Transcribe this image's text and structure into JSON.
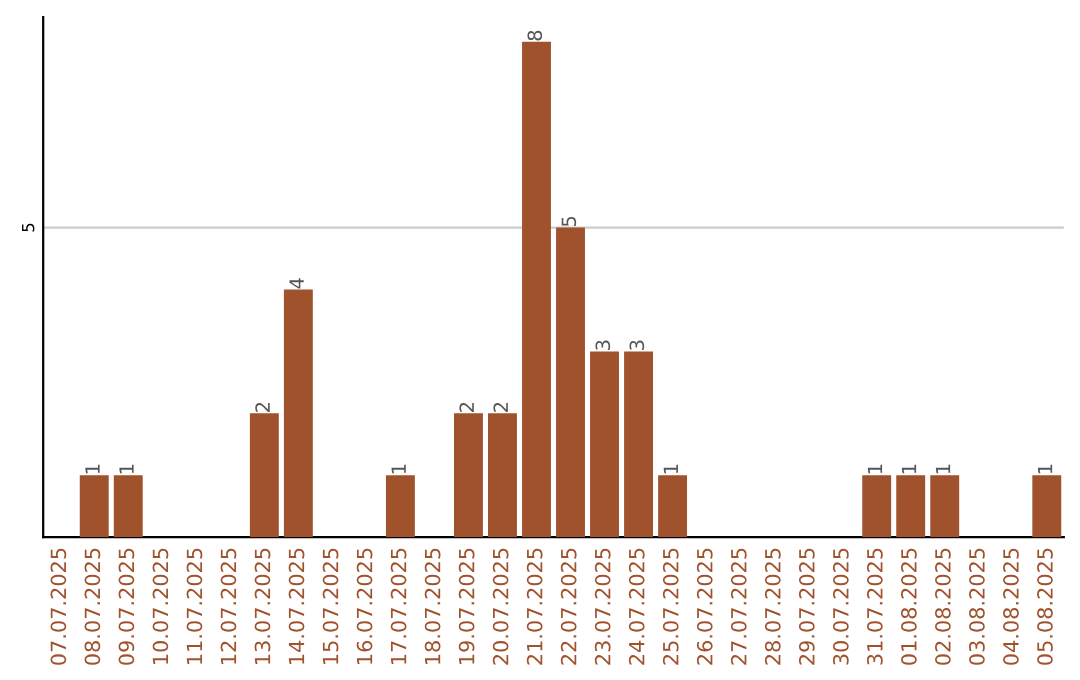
{
  "chart_data": {
    "type": "bar",
    "categories": [
      "07.07.2025",
      "08.07.2025",
      "09.07.2025",
      "10.07.2025",
      "11.07.2025",
      "12.07.2025",
      "13.07.2025",
      "14.07.2025",
      "15.07.2025",
      "16.07.2025",
      "17.07.2025",
      "18.07.2025",
      "19.07.2025",
      "20.07.2025",
      "21.07.2025",
      "22.07.2025",
      "23.07.2025",
      "24.07.2025",
      "25.07.2025",
      "26.07.2025",
      "27.07.2025",
      "28.07.2025",
      "29.07.2025",
      "30.07.2025",
      "31.07.2025",
      "01.08.2025",
      "02.08.2025",
      "03.08.2025",
      "04.08.2025",
      "05.08.2025"
    ],
    "values": [
      0,
      1,
      1,
      0,
      0,
      0,
      2,
      4,
      0,
      0,
      1,
      0,
      2,
      2,
      8,
      5,
      3,
      3,
      1,
      0,
      0,
      0,
      0,
      0,
      1,
      1,
      1,
      0,
      0,
      1
    ],
    "value_labels": [
      null,
      "1",
      "1",
      null,
      null,
      null,
      "2",
      "4",
      null,
      null,
      "1",
      null,
      "2",
      "2",
      "8",
      "5",
      "3",
      "3",
      "1",
      null,
      null,
      null,
      null,
      null,
      "1",
      "1",
      "1",
      null,
      null,
      "1"
    ],
    "color": "#a0522d",
    "ylim": [
      0,
      8.4
    ],
    "yticks": [
      5
    ],
    "grid": "y"
  }
}
